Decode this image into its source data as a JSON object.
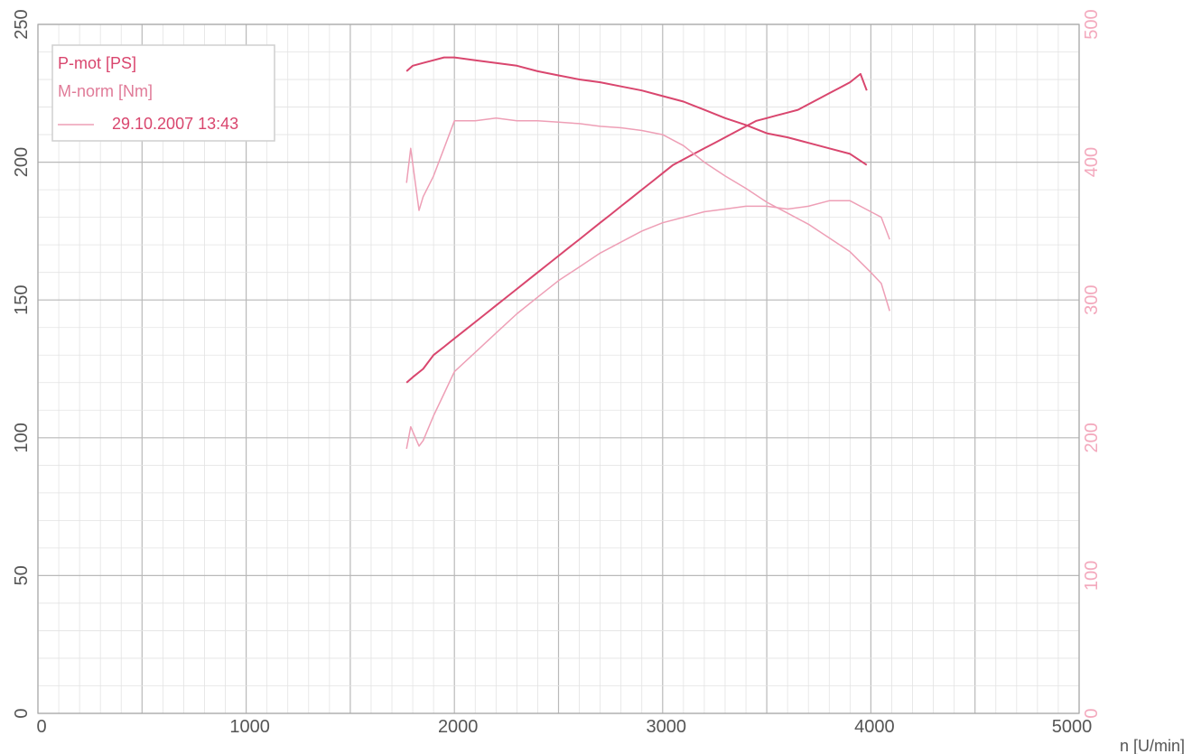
{
  "chart_data": {
    "type": "line",
    "xlabel": "n [U/min]",
    "xlim": [
      0,
      5000
    ],
    "x_ticks": [
      "0",
      "1000",
      "2000",
      "3000",
      "4000",
      "5000"
    ],
    "y_left_ylim": [
      0,
      250
    ],
    "y_left_ticks": [
      "0",
      "50",
      "100",
      "150",
      "200",
      "250"
    ],
    "y_right_ylim": [
      0,
      500
    ],
    "y_right_ticks": [
      "0",
      "100",
      "200",
      "300",
      "400",
      "500"
    ],
    "grid": true,
    "legend_position": "top-left",
    "legend": {
      "line1": "P-mot [PS]",
      "line2": "M-norm [Nm]",
      "line3": "29.10.2007 13:43"
    },
    "colors": {
      "dark": "#d9466e",
      "light": "#ee9fb6",
      "right_axis": "#f3a9bd",
      "grid": "#c8c8c8",
      "axis_text": "#555555"
    },
    "series": [
      {
        "axis": "left",
        "style": "dark",
        "x": [
          1770,
          1800,
          1850,
          1900,
          1950,
          2000,
          2050,
          2100,
          2150,
          2200,
          2250,
          2300,
          2350,
          2400,
          2450,
          2500,
          2550,
          2600,
          2650,
          2700,
          2750,
          2800,
          2850,
          2900,
          2950,
          3000,
          3050,
          3100,
          3150,
          3200,
          3250,
          3300,
          3350,
          3400,
          3450,
          3500,
          3550,
          3600,
          3650,
          3700,
          3750,
          3800,
          3850,
          3900,
          3950,
          3980
        ],
        "y": [
          120,
          122,
          125,
          130,
          133,
          136,
          139,
          142,
          145,
          148,
          151,
          154,
          157,
          160,
          163,
          166,
          169,
          172,
          175,
          178,
          181,
          184,
          187,
          190,
          193,
          196,
          199,
          201,
          203,
          205,
          207,
          209,
          211,
          213,
          215,
          216,
          217,
          218,
          219,
          221,
          223,
          225,
          227,
          229,
          232,
          226
        ]
      },
      {
        "axis": "right",
        "style": "dark",
        "x": [
          1770,
          1800,
          1850,
          1900,
          1950,
          2000,
          2100,
          2200,
          2300,
          2400,
          2500,
          2600,
          2700,
          2800,
          2900,
          3000,
          3100,
          3200,
          3300,
          3400,
          3500,
          3600,
          3700,
          3800,
          3900,
          3980
        ],
        "y": [
          466,
          470,
          472,
          474,
          476,
          476,
          474,
          472,
          470,
          466,
          463,
          460,
          458,
          455,
          452,
          448,
          444,
          438,
          432,
          427,
          421,
          418,
          414,
          410,
          406,
          398
        ]
      },
      {
        "axis": "left",
        "style": "light",
        "x": [
          1770,
          1790,
          1830,
          1850,
          1900,
          1950,
          2000,
          2100,
          2200,
          2300,
          2400,
          2500,
          2600,
          2700,
          2800,
          2900,
          3000,
          3100,
          3200,
          3300,
          3400,
          3500,
          3600,
          3700,
          3800,
          3900,
          4000,
          4050,
          4090
        ],
        "y": [
          96,
          104,
          97,
          99,
          108,
          116,
          124,
          131,
          138,
          145,
          151,
          157,
          162,
          167,
          171,
          175,
          178,
          180,
          182,
          183,
          184,
          184,
          183,
          184,
          186,
          186,
          182,
          180,
          172
        ]
      },
      {
        "axis": "right",
        "style": "light",
        "x": [
          1770,
          1790,
          1830,
          1850,
          1900,
          1950,
          2000,
          2100,
          2200,
          2300,
          2400,
          2500,
          2600,
          2700,
          2800,
          2900,
          3000,
          3100,
          3200,
          3300,
          3400,
          3500,
          3600,
          3700,
          3800,
          3900,
          4000,
          4050,
          4090
        ],
        "y": [
          385,
          410,
          365,
          375,
          390,
          410,
          430,
          430,
          432,
          430,
          430,
          429,
          428,
          426,
          425,
          423,
          420,
          412,
          400,
          390,
          381,
          371,
          363,
          355,
          345,
          335,
          320,
          312,
          292
        ]
      }
    ]
  }
}
